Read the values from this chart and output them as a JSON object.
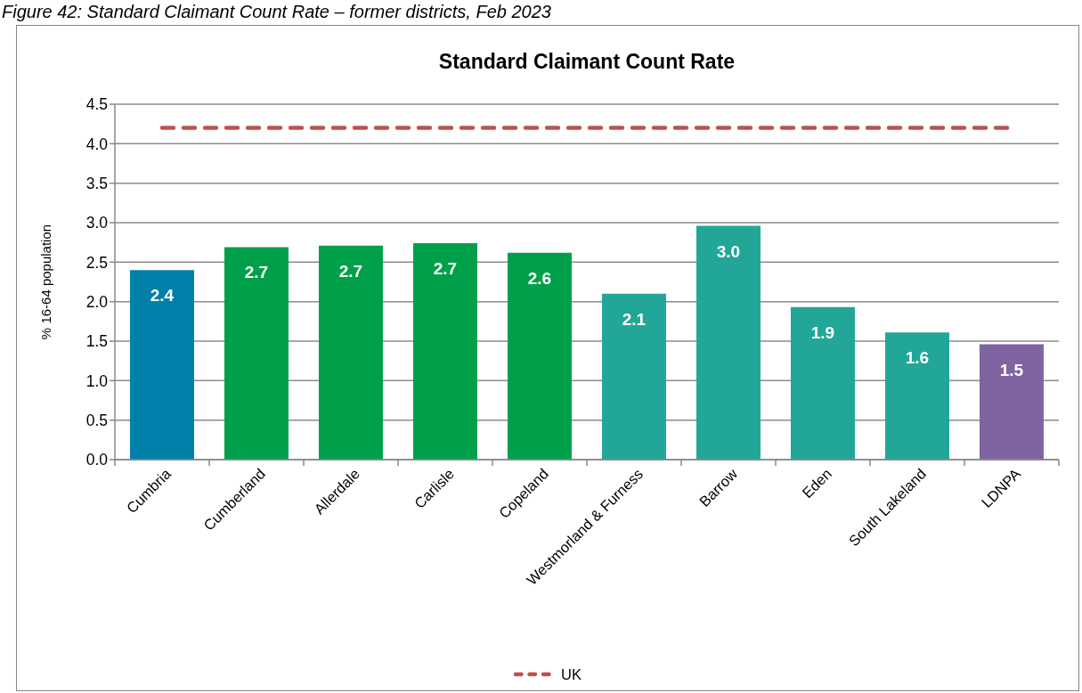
{
  "chart_data": {
    "type": "bar",
    "title": "Standard Claimant Count Rate",
    "ylabel": "% 16-64 population",
    "annotations": [
      "Figure 42: Standard Claimant Count Rate – former districts, Feb 2023"
    ],
    "categories": [
      "Cumbria",
      "Cumberland",
      "Allerdale",
      "Carlisle",
      "Copeland",
      "Westmorland & Furness",
      "Barrow",
      "Eden",
      "South Lakeland",
      "LDNPA"
    ],
    "series": [
      {
        "colors": [
          "#0080a9",
          "#00a04b",
          "#00a04b",
          "#00a04b",
          "#00a04b",
          "#22a698",
          "#22a698",
          "#22a698",
          "#22a698",
          "#8064a2"
        ],
        "values": [
          2.4,
          2.69,
          2.71,
          2.74,
          2.62,
          2.1,
          2.96,
          1.93,
          1.61,
          1.46
        ],
        "value_labels": [
          "2.4",
          "2.7",
          "2.7",
          "2.7",
          "2.6",
          "2.1",
          "3.0",
          "1.9",
          "1.6",
          "1.5"
        ]
      },
      {
        "type": "line",
        "name": "UK",
        "color": "#c0504d",
        "values": [
          4.2,
          4.2,
          4.2,
          4.2,
          4.2,
          4.2,
          4.2,
          4.2,
          4.2,
          4.2
        ],
        "line_style": "dashed",
        "marker": "none"
      }
    ],
    "ylim": [
      0,
      4.5
    ],
    "yticks": [
      {
        "value": 0,
        "label": "0.0"
      },
      0.5,
      {
        "value": 1,
        "label": "1.0"
      },
      1.5,
      {
        "value": 2,
        "label": "2.0"
      },
      2.5,
      {
        "value": 3,
        "label": "3.0"
      },
      3.5,
      {
        "value": 4,
        "label": "4.0"
      },
      4.5
    ],
    "grid": "y",
    "legend": "bottom"
  }
}
